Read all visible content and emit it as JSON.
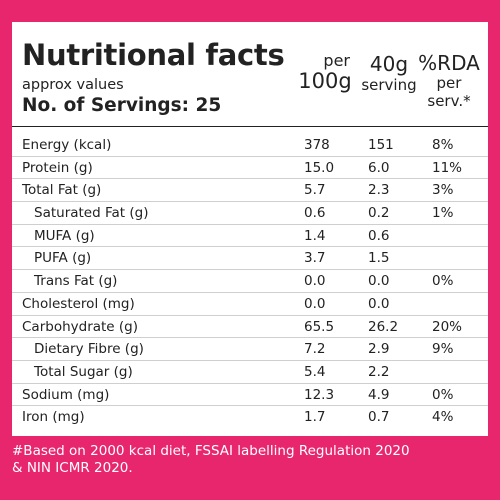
{
  "header": {
    "title": "Nutritional facts",
    "approx": "approx values",
    "servings": "No. of Servings: 25"
  },
  "columns": {
    "per100_line1": "per",
    "per100_line2": "100g",
    "serving_line1": "40g",
    "serving_line2": "serving",
    "rda_line1": "%RDA",
    "rda_line2": "per",
    "rda_line3": "serv.*"
  },
  "rows": [
    {
      "name": "Energy (kcal)",
      "per100": "378",
      "serving": "151",
      "rda": "8%",
      "sub": false
    },
    {
      "name": "Protein (g)",
      "per100": "15.0",
      "serving": "6.0",
      "rda": "11%",
      "sub": false
    },
    {
      "name": "Total Fat (g)",
      "per100": "5.7",
      "serving": "2.3",
      "rda": "3%",
      "sub": false
    },
    {
      "name": "Saturated Fat (g)",
      "per100": "0.6",
      "serving": "0.2",
      "rda": "1%",
      "sub": true
    },
    {
      "name": "MUFA (g)",
      "per100": "1.4",
      "serving": "0.6",
      "rda": "",
      "sub": true
    },
    {
      "name": "PUFA (g)",
      "per100": "3.7",
      "serving": "1.5",
      "rda": "",
      "sub": true
    },
    {
      "name": "Trans Fat (g)",
      "per100": "0.0",
      "serving": "0.0",
      "rda": "0%",
      "sub": true
    },
    {
      "name": "Cholesterol (mg)",
      "per100": "0.0",
      "serving": "0.0",
      "rda": "",
      "sub": false
    },
    {
      "name": "Carbohydrate (g)",
      "per100": "65.5",
      "serving": "26.2",
      "rda": "20%",
      "sub": false
    },
    {
      "name": "Dietary Fibre (g)",
      "per100": "7.2",
      "serving": "2.9",
      "rda": "9%",
      "sub": true
    },
    {
      "name": "Total Sugar (g)",
      "per100": "5.4",
      "serving": "2.2",
      "rda": "",
      "sub": true
    },
    {
      "name": "Sodium (mg)",
      "per100": "12.3",
      "serving": "4.9",
      "rda": "0%",
      "sub": false
    },
    {
      "name": "Iron (mg)",
      "per100": "1.7",
      "serving": "0.7",
      "rda": "4%",
      "sub": false
    }
  ],
  "footnote": {
    "line1": "#Based on 2000 kcal diet, FSSAI labelling Regulation 2020",
    "line2": "& NIN ICMR 2020."
  },
  "colors": {
    "background": "#e8266e",
    "panel": "#ffffff",
    "text": "#222222"
  }
}
